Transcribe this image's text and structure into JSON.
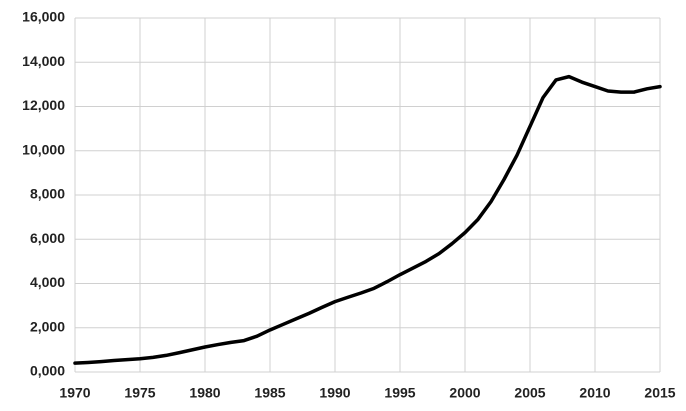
{
  "chart_data": {
    "type": "line",
    "color": "#000000",
    "grid": true,
    "x": [
      1970,
      1971,
      1972,
      1973,
      1974,
      1975,
      1976,
      1977,
      1978,
      1979,
      1980,
      1981,
      1982,
      1983,
      1984,
      1985,
      1986,
      1987,
      1988,
      1989,
      1990,
      1991,
      1992,
      1993,
      1994,
      1995,
      1996,
      1997,
      1998,
      1999,
      2000,
      2001,
      2002,
      2003,
      2004,
      2005,
      2006,
      2007,
      2008,
      2009,
      2010,
      2011,
      2012,
      2013,
      2014,
      2015
    ],
    "values": [
      400,
      430,
      470,
      520,
      560,
      600,
      660,
      750,
      870,
      1000,
      1130,
      1240,
      1340,
      1420,
      1620,
      1900,
      2150,
      2400,
      2650,
      2920,
      3180,
      3380,
      3570,
      3780,
      4080,
      4400,
      4700,
      5000,
      5350,
      5800,
      6300,
      6900,
      7700,
      8700,
      9800,
      11100,
      12400,
      13200,
      13350,
      13100,
      12900,
      12700,
      12650,
      12650,
      12800,
      12900
    ],
    "xlim": [
      1970,
      2015
    ],
    "xticks": [
      1970,
      1975,
      1980,
      1985,
      1990,
      1995,
      2000,
      2005,
      2010,
      2015
    ],
    "ylim": [
      0,
      16000
    ],
    "yticks": [
      {
        "value": 0,
        "label": "0,000"
      },
      {
        "value": 2000,
        "label": "2,000"
      },
      {
        "value": 4000,
        "label": "4,000"
      },
      {
        "value": 6000,
        "label": "6,000"
      },
      {
        "value": 8000,
        "label": "8,000"
      },
      {
        "value": 10000,
        "label": "10,000"
      },
      {
        "value": 12000,
        "label": "12,000"
      },
      {
        "value": 14000,
        "label": "14,000"
      },
      {
        "value": 16000,
        "label": "16,000"
      }
    ]
  }
}
